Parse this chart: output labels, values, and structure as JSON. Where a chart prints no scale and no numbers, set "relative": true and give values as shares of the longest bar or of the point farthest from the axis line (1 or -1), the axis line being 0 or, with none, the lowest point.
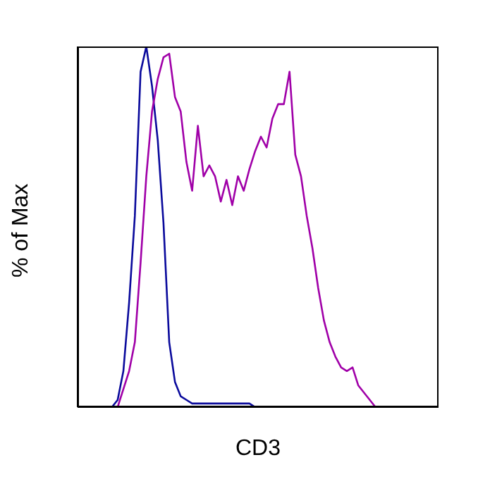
{
  "chart_data": {
    "type": "line",
    "xlabel": "CD3",
    "ylabel": "% of Max",
    "relative": true,
    "tick_labels": false,
    "marker": "none",
    "categories": [
      null,
      null,
      null,
      null,
      null,
      null,
      null,
      null,
      null,
      null,
      null,
      null,
      null,
      null,
      null,
      null,
      null,
      null,
      null,
      null,
      null,
      null,
      null,
      null,
      null,
      null,
      null,
      null,
      null,
      null,
      null,
      null,
      null,
      null,
      null,
      null,
      null,
      null,
      null,
      null,
      null,
      null,
      null,
      null,
      null,
      null,
      null,
      null,
      null,
      null,
      null,
      null,
      null,
      null,
      null,
      null,
      null,
      null,
      null,
      null,
      null,
      null,
      null,
      null
    ],
    "series": [
      {
        "color": "#0a0a9c",
        "values": [
          null,
          null,
          null,
          null,
          null,
          0,
          0,
          0.02,
          0.1,
          0.29,
          0.53,
          0.93,
          1,
          0.89,
          0.74,
          0.51,
          0.18,
          0.07,
          0.03,
          0.02,
          0.01,
          0.01,
          0.01,
          0.01,
          0.01,
          0.01,
          0.01,
          0.01,
          0.01,
          0.01,
          0.01,
          0,
          null,
          null,
          null,
          null,
          null,
          null,
          null,
          null,
          null,
          null,
          null,
          null,
          null,
          null,
          null,
          null,
          null,
          null,
          null,
          null,
          null,
          null,
          null,
          null,
          null,
          null,
          null,
          null,
          null,
          null,
          null,
          null
        ]
      },
      {
        "color": "#a000a8",
        "values": [
          null,
          null,
          null,
          null,
          null,
          0,
          0,
          0,
          0.05,
          0.1,
          0.18,
          0.4,
          0.64,
          0.82,
          0.91,
          0.97,
          0.98,
          0.86,
          0.82,
          0.68,
          0.6,
          0.78,
          0.64,
          0.67,
          0.64,
          0.57,
          0.63,
          0.56,
          0.64,
          0.6,
          0.66,
          0.71,
          0.75,
          0.72,
          0.8,
          0.84,
          0.84,
          0.93,
          0.7,
          0.64,
          0.53,
          0.44,
          0.33,
          0.24,
          0.18,
          0.14,
          0.11,
          0.1,
          0.11,
          0.06,
          0.04,
          0.02,
          0,
          0,
          0,
          null,
          null,
          null,
          null,
          null,
          null,
          null,
          null,
          null
        ]
      }
    ]
  }
}
